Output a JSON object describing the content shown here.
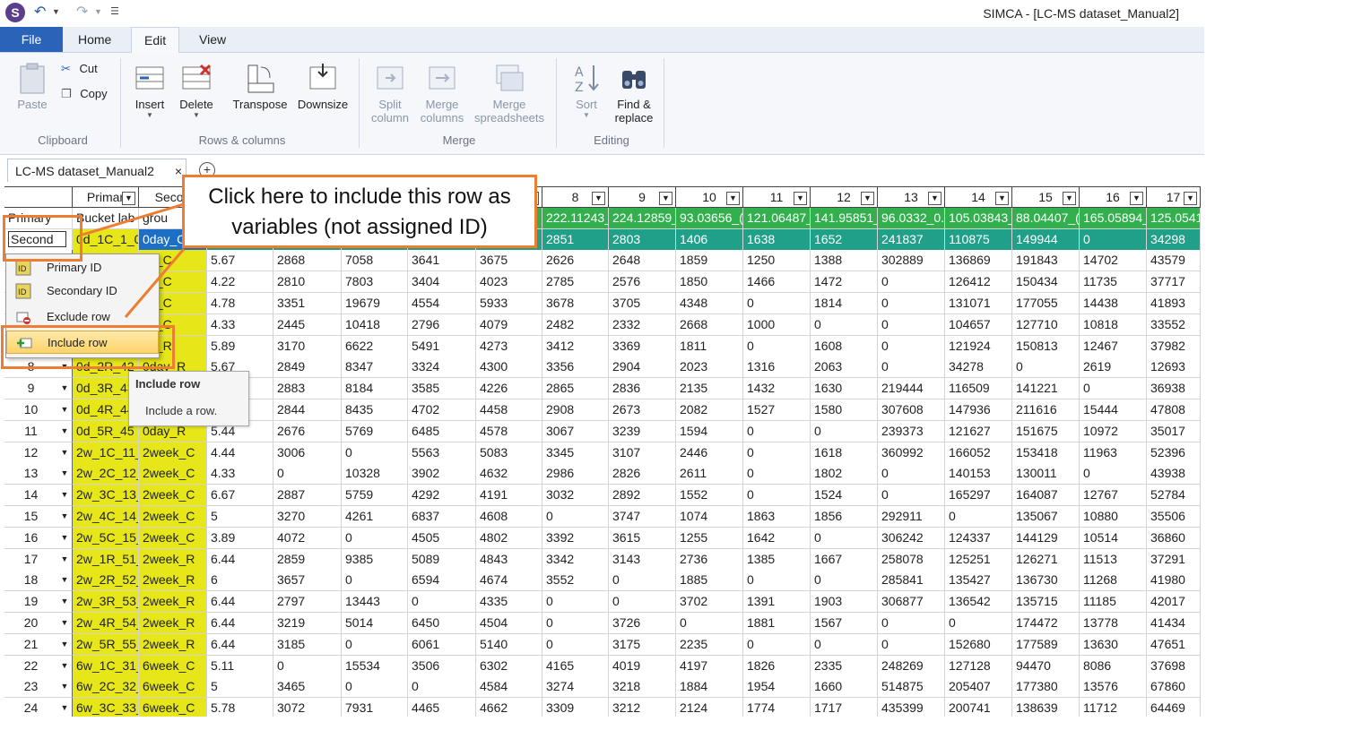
{
  "window": {
    "title": "SIMCA - [LC-MS dataset_Manual2]"
  },
  "ribbon_tabs": [
    "File",
    "Home",
    "Edit",
    "View"
  ],
  "active_tab": "Edit",
  "ribbon": {
    "clipboard": {
      "paste": "Paste",
      "cut": "Cut",
      "copy": "Copy",
      "group": "Clipboard"
    },
    "rows_columns": {
      "insert": "Insert",
      "delete": "Delete",
      "transpose": "Transpose",
      "downsize": "Downsize",
      "group": "Rows & columns"
    },
    "merge": {
      "split_1": "Split",
      "split_2": "column",
      "merge_cols_1": "Merge",
      "merge_cols_2": "columns",
      "merge_sheets_1": "Merge",
      "merge_sheets_2": "spreadsheets",
      "group": "Merge"
    },
    "editing": {
      "sort": "Sort",
      "find_1": "Find &",
      "find_2": "replace",
      "group": "Editing"
    }
  },
  "document_tab": {
    "label": "LC-MS dataset_Manual2",
    "close": "×",
    "new": "+"
  },
  "grid": {
    "col_headers": [
      "Primar",
      "Secon",
      "3",
      "4",
      "5",
      "6",
      "7",
      "8",
      "9",
      "10",
      "11",
      "12",
      "13",
      "14",
      "15",
      "16",
      "17"
    ],
    "header_row_1": {
      "label": "Primary",
      "bucket": "Bucket lab",
      "group": "grou",
      "values": [
        "222.11243_",
        "224.12859_",
        "93.03656_(",
        "121.06487_",
        "141.95851_",
        "96.0332_0.",
        "105.03843_",
        "88.04407_(",
        "165.05894_",
        "125.0541"
      ]
    },
    "header_row_2": {
      "label": "Second",
      "id": "0d_1C_1_0",
      "sec": "0day_C",
      "values": [
        "2851",
        "2803",
        "1406",
        "1638",
        "1652",
        "241837",
        "110875",
        "149944",
        "0",
        "34298"
      ]
    },
    "rows": [
      {
        "id": "",
        "c1": "",
        "c2": "ay_C",
        "v": [
          "5.67",
          "2868",
          "7058",
          "3641",
          "3675",
          "2626",
          "2648",
          "1859",
          "1250",
          "1388",
          "302889",
          "136869",
          "191843",
          "14702",
          "43579"
        ]
      },
      {
        "id": "",
        "c1": "",
        "c2": "ay_C",
        "v": [
          "4.22",
          "2810",
          "7803",
          "3404",
          "4023",
          "2785",
          "2576",
          "1850",
          "1466",
          "1472",
          "0",
          "126412",
          "150434",
          "11735",
          "37717"
        ]
      },
      {
        "id": "",
        "c1": "",
        "c2": "ay_C",
        "v": [
          "4.78",
          "3351",
          "19679",
          "4554",
          "5933",
          "3678",
          "3705",
          "4348",
          "0",
          "1814",
          "0",
          "131071",
          "177055",
          "14438",
          "41893"
        ]
      },
      {
        "id": "",
        "c1": "",
        "c2": "ay_C",
        "v": [
          "4.33",
          "2445",
          "10418",
          "2796",
          "4079",
          "2482",
          "2332",
          "2668",
          "1000",
          "0",
          "0",
          "104657",
          "127710",
          "10818",
          "33552"
        ]
      },
      {
        "id": "",
        "c1": "",
        "c2": "ay_R",
        "v": [
          "5.89",
          "3170",
          "6622",
          "5491",
          "4273",
          "3412",
          "3369",
          "1811",
          "0",
          "1608",
          "0",
          "121924",
          "150813",
          "12467",
          "37982"
        ]
      },
      {
        "id": "8",
        "c1": "0d_2R_42",
        "c2": "0day_R",
        "v": [
          "5.67",
          "2849",
          "8347",
          "3324",
          "4300",
          "3356",
          "2904",
          "2023",
          "1316",
          "2063",
          "0",
          "34278",
          "0",
          "2619",
          "12693"
        ]
      },
      {
        "id": "9",
        "c1": "0d_3R_43",
        "c2": "0day_R",
        "v": [
          "6",
          "2883",
          "8184",
          "3585",
          "4226",
          "2865",
          "2836",
          "2135",
          "1432",
          "1630",
          "219444",
          "116509",
          "141221",
          "0",
          "36938"
        ]
      },
      {
        "id": "10",
        "c1": "0d_4R_44",
        "c2": "0day_R",
        "v": [
          "5.89",
          "2844",
          "8435",
          "4702",
          "4458",
          "2908",
          "2673",
          "2082",
          "1527",
          "1580",
          "307608",
          "147936",
          "211616",
          "15444",
          "47808"
        ]
      },
      {
        "id": "11",
        "c1": "0d_5R_45",
        "c2": "0day_R",
        "v": [
          "5.44",
          "2676",
          "5769",
          "6485",
          "4578",
          "3067",
          "3239",
          "1594",
          "0",
          "0",
          "239373",
          "121627",
          "151675",
          "10972",
          "35017"
        ]
      },
      {
        "id": "12",
        "c1": "2w_1C_11_",
        "c2": "2week_C",
        "v": [
          "4.44",
          "3006",
          "0",
          "5563",
          "5083",
          "3345",
          "3107",
          "2446",
          "0",
          "1618",
          "360992",
          "166052",
          "153418",
          "11963",
          "52396"
        ]
      },
      {
        "id": "13",
        "c1": "2w_2C_12_",
        "c2": "2week_C",
        "v": [
          "4.33",
          "0",
          "10328",
          "3902",
          "4632",
          "2986",
          "2826",
          "2611",
          "0",
          "1802",
          "0",
          "140153",
          "130011",
          "0",
          "43938"
        ]
      },
      {
        "id": "14",
        "c1": "2w_3C_13_",
        "c2": "2week_C",
        "v": [
          "6.67",
          "2887",
          "5759",
          "4292",
          "4191",
          "3032",
          "2892",
          "1552",
          "0",
          "1524",
          "0",
          "165297",
          "164087",
          "12767",
          "52784"
        ]
      },
      {
        "id": "15",
        "c1": "2w_4C_14_",
        "c2": "2week_C",
        "v": [
          "5",
          "3270",
          "4261",
          "6837",
          "4608",
          "0",
          "3747",
          "1074",
          "1863",
          "1856",
          "292911",
          "0",
          "135067",
          "10880",
          "35506"
        ]
      },
      {
        "id": "16",
        "c1": "2w_5C_15_",
        "c2": "2week_C",
        "v": [
          "3.89",
          "4072",
          "0",
          "4505",
          "4802",
          "3392",
          "3615",
          "1255",
          "1642",
          "0",
          "306242",
          "124337",
          "144129",
          "10514",
          "36860"
        ]
      },
      {
        "id": "17",
        "c1": "2w_1R_51_",
        "c2": "2week_R",
        "v": [
          "6.44",
          "2859",
          "9385",
          "5089",
          "4843",
          "3342",
          "3143",
          "2736",
          "1385",
          "1667",
          "258078",
          "125251",
          "126271",
          "11513",
          "37291"
        ]
      },
      {
        "id": "18",
        "c1": "2w_2R_52_",
        "c2": "2week_R",
        "v": [
          "6",
          "3657",
          "0",
          "6594",
          "4674",
          "3552",
          "0",
          "1885",
          "0",
          "0",
          "285841",
          "135427",
          "136730",
          "11268",
          "41980"
        ]
      },
      {
        "id": "19",
        "c1": "2w_3R_53_",
        "c2": "2week_R",
        "v": [
          "6.44",
          "2797",
          "13443",
          "0",
          "4335",
          "0",
          "0",
          "3702",
          "1391",
          "1903",
          "306877",
          "136542",
          "135715",
          "11185",
          "42017"
        ]
      },
      {
        "id": "20",
        "c1": "2w_4R_54_",
        "c2": "2week_R",
        "v": [
          "6.44",
          "3219",
          "5014",
          "6450",
          "4504",
          "0",
          "3726",
          "0",
          "1881",
          "1567",
          "0",
          "0",
          "174472",
          "13778",
          "41434"
        ]
      },
      {
        "id": "21",
        "c1": "2w_5R_55_",
        "c2": "2week_R",
        "v": [
          "6.44",
          "3185",
          "0",
          "6061",
          "5140",
          "0",
          "3175",
          "2235",
          "0",
          "0",
          "0",
          "152680",
          "177589",
          "13630",
          "47651"
        ]
      },
      {
        "id": "22",
        "c1": "6w_1C_31_",
        "c2": "6week_C",
        "v": [
          "5.11",
          "0",
          "15534",
          "3506",
          "6302",
          "4165",
          "4019",
          "4197",
          "1826",
          "2335",
          "248269",
          "127128",
          "94470",
          "8086",
          "37698"
        ]
      },
      {
        "id": "23",
        "c1": "6w_2C_32_",
        "c2": "6week_C",
        "v": [
          "5",
          "3465",
          "0",
          "0",
          "4584",
          "3274",
          "3218",
          "1884",
          "1954",
          "1660",
          "514875",
          "205407",
          "177380",
          "13576",
          "67860"
        ]
      },
      {
        "id": "24",
        "c1": "6w_3C_33_",
        "c2": "6week_C",
        "v": [
          "5.78",
          "3072",
          "7931",
          "4465",
          "4662",
          "3309",
          "3212",
          "2124",
          "1774",
          "1717",
          "435399",
          "200741",
          "138639",
          "11712",
          "64469"
        ]
      }
    ]
  },
  "context_menu": {
    "items": [
      {
        "label": "Primary ID",
        "icon": "primary-id-icon"
      },
      {
        "label": "Secondary ID",
        "icon": "secondary-id-icon"
      },
      {
        "label": "Exclude row",
        "icon": "exclude-row-icon"
      },
      {
        "label": "Include row",
        "icon": "include-row-icon"
      }
    ]
  },
  "tooltip": {
    "title": "Include row",
    "desc": "Include a row."
  },
  "callout": {
    "line1": "Click here to include this row as",
    "line2": "variables (not assigned ID)"
  },
  "colors": {
    "accent": "#ed7d31",
    "file_tab": "#2a63b8",
    "id_yellow": "#e6e619",
    "header_green": "#33b04e",
    "header_teal": "#20a089"
  }
}
